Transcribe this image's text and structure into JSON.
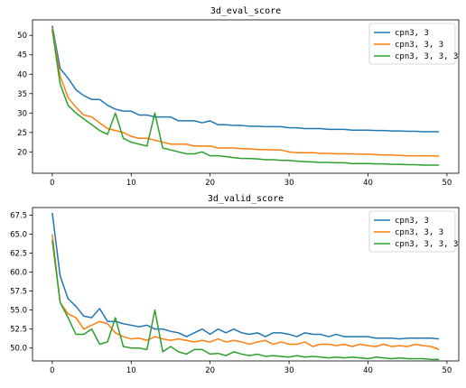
{
  "chart_data": [
    {
      "type": "line",
      "title": "3d_eval_score",
      "xlim": [
        -2.5,
        51.5
      ],
      "ylim": [
        14.5,
        54
      ],
      "xticks": [
        0,
        10,
        20,
        30,
        40,
        50
      ],
      "yticks": [
        20,
        25,
        30,
        35,
        40,
        45,
        50
      ],
      "legend": "upper right",
      "x": [
        0,
        1,
        2,
        3,
        4,
        5,
        6,
        7,
        8,
        9,
        10,
        11,
        12,
        13,
        14,
        15,
        16,
        17,
        18,
        19,
        20,
        21,
        22,
        23,
        24,
        25,
        26,
        27,
        28,
        29,
        30,
        31,
        32,
        33,
        34,
        35,
        36,
        37,
        38,
        39,
        40,
        41,
        42,
        43,
        44,
        45,
        46,
        47,
        48,
        49
      ],
      "series": [
        {
          "name": "cpn3, 3",
          "color": "#1f77b4",
          "values": [
            52.5,
            41.5,
            39.0,
            36.0,
            34.5,
            33.5,
            33.5,
            32.0,
            31.0,
            30.5,
            30.5,
            29.5,
            29.5,
            29.0,
            29.0,
            29.0,
            28.0,
            28.0,
            28.0,
            27.5,
            28.0,
            27.0,
            27.0,
            26.8,
            26.8,
            26.6,
            26.6,
            26.5,
            26.5,
            26.5,
            26.2,
            26.2,
            26.0,
            26.0,
            26.0,
            25.8,
            25.8,
            25.8,
            25.6,
            25.6,
            25.6,
            25.5,
            25.5,
            25.4,
            25.4,
            25.3,
            25.3,
            25.2,
            25.2,
            25.2
          ]
        },
        {
          "name": "cpn3, 3, 3",
          "color": "#ff7f0e",
          "values": [
            52.0,
            39.5,
            34.0,
            31.5,
            29.5,
            29.0,
            27.5,
            26.0,
            25.5,
            25.0,
            24.0,
            23.5,
            23.5,
            23.0,
            22.5,
            22.0,
            22.0,
            22.0,
            21.5,
            21.5,
            21.5,
            21.0,
            21.0,
            21.0,
            20.8,
            20.8,
            20.6,
            20.6,
            20.5,
            20.5,
            20.0,
            19.8,
            19.8,
            19.8,
            19.6,
            19.6,
            19.5,
            19.5,
            19.5,
            19.4,
            19.4,
            19.3,
            19.2,
            19.2,
            19.1,
            19.0,
            19.0,
            19.0,
            19.0,
            18.9
          ]
        },
        {
          "name": "cpn3, 3, 3, 3",
          "color": "#2ca02c",
          "values": [
            51.5,
            37.5,
            32.0,
            30.0,
            28.5,
            27.0,
            25.5,
            24.5,
            30.0,
            23.5,
            22.5,
            22.0,
            21.5,
            30.0,
            21.0,
            20.5,
            20.0,
            19.5,
            19.5,
            20.0,
            19.0,
            19.0,
            18.8,
            18.5,
            18.3,
            18.3,
            18.2,
            18.0,
            18.0,
            17.8,
            17.8,
            17.6,
            17.5,
            17.4,
            17.3,
            17.3,
            17.2,
            17.2,
            17.0,
            17.0,
            17.0,
            16.9,
            16.9,
            16.8,
            16.8,
            16.7,
            16.7,
            16.6,
            16.6,
            16.6
          ]
        }
      ]
    },
    {
      "type": "line",
      "title": "3d_valid_score",
      "xlim": [
        -2.5,
        51.5
      ],
      "ylim": [
        48.3,
        68.5
      ],
      "xticks": [
        0,
        10,
        20,
        30,
        40,
        50
      ],
      "yticks": [
        50.0,
        52.5,
        55.0,
        57.5,
        60.0,
        62.5,
        65.0,
        67.5
      ],
      "ytick_labels": [
        "50.0",
        "52.5",
        "55.0",
        "57.5",
        "60.0",
        "62.5",
        "65.0",
        "67.5"
      ],
      "legend": "upper right",
      "x": [
        0,
        1,
        2,
        3,
        4,
        5,
        6,
        7,
        8,
        9,
        10,
        11,
        12,
        13,
        14,
        15,
        16,
        17,
        18,
        19,
        20,
        21,
        22,
        23,
        24,
        25,
        26,
        27,
        28,
        29,
        30,
        31,
        32,
        33,
        34,
        35,
        36,
        37,
        38,
        39,
        40,
        41,
        42,
        43,
        44,
        45,
        46,
        47,
        48,
        49
      ],
      "series": [
        {
          "name": "cpn3, 3",
          "color": "#1f77b4",
          "values": [
            67.8,
            59.5,
            56.5,
            55.5,
            54.2,
            54.0,
            55.2,
            53.5,
            53.5,
            53.2,
            53.0,
            52.8,
            53.0,
            52.5,
            52.5,
            52.2,
            52.0,
            51.5,
            52.0,
            52.5,
            51.8,
            52.5,
            52.0,
            52.5,
            52.0,
            51.8,
            52.0,
            51.5,
            52.0,
            52.0,
            51.8,
            51.5,
            52.0,
            51.8,
            51.8,
            51.5,
            51.8,
            51.5,
            51.5,
            51.5,
            51.5,
            51.3,
            51.3,
            51.3,
            51.2,
            51.3,
            51.3,
            51.3,
            51.3,
            51.2
          ]
        },
        {
          "name": "cpn3, 3, 3",
          "color": "#ff7f0e",
          "values": [
            65.0,
            56.0,
            54.5,
            54.0,
            52.5,
            53.0,
            53.5,
            53.2,
            52.0,
            51.5,
            51.2,
            51.3,
            51.0,
            51.5,
            51.2,
            51.0,
            51.2,
            51.0,
            50.8,
            51.0,
            50.8,
            51.2,
            50.8,
            51.0,
            50.8,
            50.5,
            50.8,
            51.0,
            50.5,
            50.8,
            50.5,
            50.5,
            50.8,
            50.2,
            50.5,
            50.5,
            50.3,
            50.5,
            50.2,
            50.5,
            50.3,
            50.2,
            50.5,
            50.2,
            50.3,
            50.2,
            50.5,
            50.3,
            50.2,
            49.8
          ]
        },
        {
          "name": "cpn3, 3, 3, 3",
          "color": "#2ca02c",
          "values": [
            64.2,
            56.0,
            54.0,
            51.8,
            51.8,
            52.5,
            50.5,
            50.8,
            54.0,
            50.2,
            50.0,
            50.0,
            49.8,
            55.0,
            49.5,
            50.2,
            49.5,
            49.2,
            49.8,
            49.8,
            49.2,
            49.3,
            49.0,
            49.5,
            49.2,
            49.0,
            49.2,
            48.9,
            49.0,
            48.9,
            48.8,
            49.0,
            48.8,
            48.9,
            48.8,
            48.7,
            48.8,
            48.7,
            48.8,
            48.7,
            48.6,
            48.8,
            48.7,
            48.6,
            48.7,
            48.6,
            48.6,
            48.6,
            48.5,
            48.5
          ]
        }
      ]
    }
  ]
}
